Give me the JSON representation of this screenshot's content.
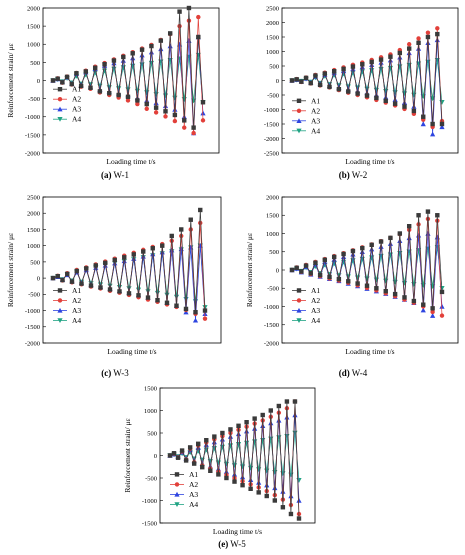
{
  "panel_label_prefix": "(",
  "colors": {
    "A1": "#3a3a3a",
    "A2": "#e2403a",
    "A3": "#2e45e0",
    "A4": "#1fa383"
  },
  "chart_data": [
    {
      "type": "line",
      "panel_tag": "(a)",
      "panel_name": "W-1",
      "xlabel": "Loading time t/s",
      "ylabel": "Reinforcement strain/ με",
      "ylim": [
        -2000,
        2000
      ],
      "yticks": [
        -2000,
        -1500,
        -1000,
        -500,
        0,
        500,
        1000,
        1500,
        2000
      ],
      "n_points": 33,
      "legend_position": "center-left",
      "series": [
        {
          "name": "A1",
          "marker": "square",
          "values": [
            0,
            50,
            -50,
            100,
            -100,
            200,
            -150,
            250,
            -200,
            350,
            -300,
            450,
            -350,
            550,
            -400,
            650,
            -450,
            750,
            -550,
            850,
            -650,
            950,
            -750,
            1100,
            -850,
            1300,
            -950,
            1900,
            -1100,
            2000,
            -1300,
            1200,
            -600
          ]
        },
        {
          "name": "A2",
          "marker": "circle",
          "values": [
            0,
            60,
            -60,
            110,
            -110,
            210,
            -170,
            270,
            -230,
            380,
            -330,
            480,
            -400,
            580,
            -470,
            680,
            -550,
            780,
            -650,
            880,
            -780,
            980,
            -880,
            1120,
            -990,
            1280,
            -1120,
            1500,
            -1300,
            1650,
            -1450,
            1750,
            -1100
          ]
        },
        {
          "name": "A3",
          "marker": "triangle",
          "values": [
            0,
            40,
            -40,
            90,
            -90,
            180,
            -130,
            230,
            -180,
            320,
            -250,
            410,
            -300,
            480,
            -350,
            550,
            -400,
            620,
            -480,
            700,
            -550,
            780,
            -620,
            870,
            -700,
            950,
            -800,
            1000,
            -1000,
            1100,
            -1450,
            1200,
            -900
          ]
        },
        {
          "name": "A4",
          "marker": "triangle-down",
          "values": [
            0,
            30,
            -30,
            60,
            -60,
            120,
            -90,
            160,
            -110,
            220,
            -150,
            270,
            -190,
            320,
            -220,
            360,
            -250,
            400,
            -290,
            440,
            -330,
            480,
            -380,
            520,
            -420,
            560,
            -480,
            600,
            -520,
            650,
            -560,
            700,
            -600
          ]
        }
      ]
    },
    {
      "type": "line",
      "panel_tag": "(b)",
      "panel_name": "W-2",
      "xlabel": "Loading time t/s",
      "ylabel": "",
      "ylim": [
        -2500,
        2500
      ],
      "yticks": [
        -2500,
        -2000,
        -1500,
        -1000,
        -500,
        0,
        500,
        1000,
        1500,
        2000,
        2500
      ],
      "n_points": 33,
      "legend_position": "lower-left",
      "series": [
        {
          "name": "A1",
          "marker": "square",
          "values": [
            0,
            40,
            -40,
            90,
            -90,
            170,
            -150,
            240,
            -220,
            320,
            -300,
            400,
            -380,
            480,
            -450,
            560,
            -520,
            640,
            -600,
            720,
            -700,
            820,
            -800,
            950,
            -900,
            1100,
            -1050,
            1300,
            -1250,
            1500,
            -1500,
            1600,
            -1500
          ]
        },
        {
          "name": "A2",
          "marker": "circle",
          "values": [
            0,
            50,
            -50,
            100,
            -100,
            190,
            -170,
            270,
            -240,
            360,
            -330,
            450,
            -420,
            540,
            -500,
            620,
            -580,
            710,
            -670,
            800,
            -760,
            900,
            -860,
            1050,
            -980,
            1250,
            -1150,
            1450,
            -1350,
            1650,
            -1600,
            1800,
            -1400
          ]
        },
        {
          "name": "A3",
          "marker": "triangle",
          "values": [
            0,
            30,
            -30,
            70,
            -70,
            140,
            -120,
            200,
            -180,
            260,
            -240,
            330,
            -300,
            400,
            -360,
            470,
            -430,
            540,
            -500,
            620,
            -580,
            700,
            -660,
            800,
            -760,
            950,
            -900,
            1100,
            -1500,
            1300,
            -1850,
            1400,
            -1600
          ]
        },
        {
          "name": "A4",
          "marker": "triangle-down",
          "values": [
            0,
            20,
            -20,
            50,
            -50,
            100,
            -90,
            150,
            -130,
            190,
            -170,
            230,
            -210,
            270,
            -250,
            310,
            -290,
            350,
            -330,
            390,
            -370,
            430,
            -410,
            480,
            -450,
            530,
            -500,
            580,
            -550,
            640,
            -620,
            700,
            -750
          ]
        }
      ]
    },
    {
      "type": "line",
      "panel_tag": "(c)",
      "panel_name": "W-3",
      "xlabel": "Loading time t/s",
      "ylabel": "Reinforcement strain/ με",
      "ylim": [
        -2000,
        2500
      ],
      "yticks": [
        -2000,
        -1500,
        -1000,
        -500,
        0,
        500,
        1000,
        1500,
        2000,
        2500
      ],
      "n_points": 33,
      "legend_position": "lower-left",
      "series": [
        {
          "name": "A1",
          "marker": "square",
          "values": [
            0,
            60,
            -60,
            130,
            -110,
            220,
            -170,
            300,
            -230,
            390,
            -290,
            470,
            -350,
            560,
            -410,
            640,
            -470,
            730,
            -530,
            820,
            -600,
            920,
            -680,
            1000,
            -760,
            1300,
            -850,
            1500,
            -950,
            1800,
            -1050,
            2100,
            -1000
          ]
        },
        {
          "name": "A2",
          "marker": "circle",
          "values": [
            0,
            70,
            -70,
            150,
            -130,
            250,
            -190,
            330,
            -260,
            420,
            -320,
            510,
            -390,
            600,
            -450,
            690,
            -520,
            780,
            -590,
            870,
            -660,
            960,
            -730,
            1050,
            -810,
            1150,
            -890,
            1300,
            -980,
            1500,
            -1100,
            1700,
            -1250
          ]
        },
        {
          "name": "A3",
          "marker": "triangle",
          "values": [
            0,
            40,
            -50,
            100,
            -100,
            180,
            -150,
            250,
            -210,
            320,
            -270,
            390,
            -330,
            460,
            -390,
            530,
            -450,
            600,
            -520,
            670,
            -600,
            740,
            -680,
            800,
            -760,
            860,
            -850,
            900,
            -1050,
            950,
            -1300,
            1000,
            -1100
          ]
        },
        {
          "name": "A4",
          "marker": "triangle-down",
          "values": [
            0,
            50,
            -40,
            110,
            -80,
            190,
            -120,
            260,
            -160,
            330,
            -200,
            400,
            -240,
            460,
            -280,
            520,
            -320,
            580,
            -360,
            640,
            -410,
            700,
            -460,
            760,
            -520,
            820,
            -580,
            880,
            -650,
            940,
            -720,
            1000,
            -900
          ]
        }
      ]
    },
    {
      "type": "line",
      "panel_tag": "(d)",
      "panel_name": "W-4",
      "xlabel": "Loading time t/s",
      "ylabel": "Reinforcement strain/ με",
      "ylim": [
        -2000,
        2000
      ],
      "yticks": [
        -2000,
        -1500,
        -1000,
        -500,
        0,
        500,
        1000,
        1500,
        2000
      ],
      "n_points": 33,
      "legend_position": "lower-left",
      "series": [
        {
          "name": "A1",
          "marker": "square",
          "values": [
            0,
            60,
            -40,
            120,
            -90,
            200,
            -140,
            280,
            -190,
            360,
            -250,
            440,
            -310,
            520,
            -370,
            600,
            -430,
            690,
            -500,
            780,
            -580,
            880,
            -660,
            1000,
            -750,
            1200,
            -850,
            1500,
            -950,
            1600,
            -1050,
            1500,
            -600
          ]
        },
        {
          "name": "A2",
          "marker": "circle",
          "values": [
            0,
            70,
            -50,
            140,
            -110,
            220,
            -170,
            300,
            -230,
            380,
            -290,
            460,
            -350,
            540,
            -420,
            620,
            -490,
            700,
            -560,
            790,
            -640,
            880,
            -720,
            980,
            -810,
            1100,
            -900,
            1250,
            -1000,
            1400,
            -1150,
            1350,
            -1250
          ]
        },
        {
          "name": "A3",
          "marker": "triangle",
          "values": [
            0,
            40,
            -60,
            90,
            -120,
            160,
            -180,
            220,
            -240,
            290,
            -300,
            360,
            -370,
            430,
            -440,
            500,
            -510,
            570,
            -580,
            640,
            -650,
            720,
            -730,
            800,
            -810,
            880,
            -900,
            950,
            -1100,
            1000,
            -1250,
            900,
            -1000
          ]
        },
        {
          "name": "A4",
          "marker": "triangle-down",
          "values": [
            0,
            30,
            -30,
            60,
            -60,
            100,
            -90,
            140,
            -120,
            180,
            -150,
            220,
            -180,
            260,
            -210,
            300,
            -240,
            340,
            -270,
            380,
            -300,
            420,
            -330,
            460,
            -360,
            500,
            -390,
            540,
            -420,
            580,
            -450,
            620,
            -500
          ]
        }
      ]
    },
    {
      "type": "line",
      "panel_tag": "(e)",
      "panel_name": "W-5",
      "xlabel": "Loading time t/s",
      "ylabel": "Reinforcement strain/ με",
      "ylim": [
        -1500,
        1500
      ],
      "yticks": [
        -1500,
        -1000,
        -500,
        0,
        500,
        1000,
        1500
      ],
      "n_points": 33,
      "legend_position": "lower-left",
      "series": [
        {
          "name": "A1",
          "marker": "square",
          "values": [
            0,
            50,
            -50,
            110,
            -110,
            180,
            -180,
            260,
            -260,
            340,
            -340,
            420,
            -420,
            500,
            -500,
            580,
            -580,
            660,
            -660,
            740,
            -740,
            820,
            -820,
            900,
            -900,
            1000,
            -1000,
            1100,
            -1150,
            1200,
            -1300,
            1200,
            -1400
          ]
        },
        {
          "name": "A2",
          "marker": "circle",
          "values": [
            0,
            40,
            -40,
            90,
            -90,
            150,
            -150,
            220,
            -220,
            290,
            -290,
            360,
            -360,
            430,
            -430,
            500,
            -500,
            570,
            -570,
            640,
            -640,
            710,
            -710,
            780,
            -790,
            860,
            -880,
            950,
            -980,
            1050,
            -1100,
            1200,
            -1300
          ]
        },
        {
          "name": "A3",
          "marker": "triangle",
          "values": [
            0,
            30,
            -30,
            70,
            -70,
            120,
            -120,
            180,
            -180,
            240,
            -240,
            300,
            -300,
            360,
            -360,
            420,
            -420,
            480,
            -480,
            540,
            -540,
            600,
            -600,
            660,
            -660,
            720,
            -720,
            780,
            -800,
            850,
            -900,
            900,
            -1000
          ]
        },
        {
          "name": "A4",
          "marker": "triangle-down",
          "values": [
            0,
            20,
            -20,
            40,
            -40,
            70,
            -70,
            100,
            -100,
            130,
            -130,
            160,
            -160,
            190,
            -190,
            220,
            -220,
            250,
            -250,
            280,
            -280,
            310,
            -310,
            340,
            -340,
            370,
            -370,
            400,
            -400,
            430,
            -430,
            500,
            -550
          ]
        }
      ]
    }
  ]
}
